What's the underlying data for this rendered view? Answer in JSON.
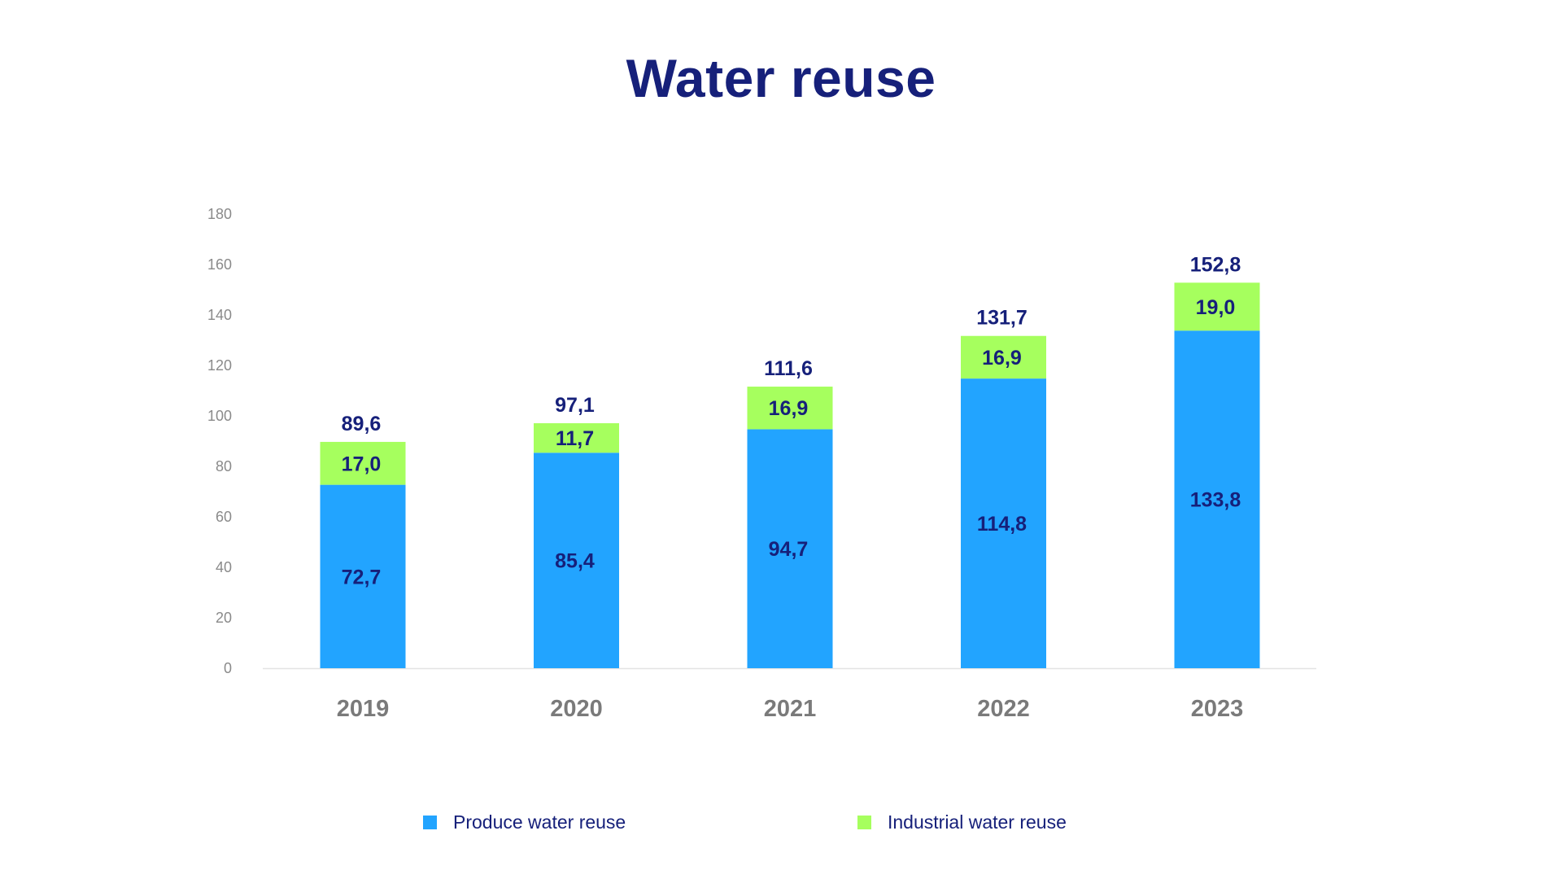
{
  "chart_data": {
    "type": "bar",
    "stacked": true,
    "title": "Water reuse",
    "categories": [
      "2019",
      "2020",
      "2021",
      "2022",
      "2023"
    ],
    "series": [
      {
        "name": "Produce water reuse",
        "color": "#22a4ff",
        "values": [
          72.7,
          85.4,
          94.7,
          114.8,
          133.8
        ],
        "labels": [
          "72,7",
          "85,4",
          "94,7",
          "114,8",
          "133,8"
        ]
      },
      {
        "name": "Industrial water reuse",
        "color": "#a6ff5e",
        "values": [
          17.0,
          11.7,
          16.9,
          16.9,
          19.0
        ],
        "labels": [
          "17,0",
          "11,7",
          "16,9",
          "16,9",
          "19,0"
        ]
      }
    ],
    "totals": [
      89.6,
      97.1,
      111.6,
      131.7,
      152.8
    ],
    "total_labels": [
      "89,6",
      "97,1",
      "111,6",
      "131,7",
      "152,8"
    ],
    "yticks": [
      "0",
      "20",
      "40",
      "60",
      "80",
      "100",
      "120",
      "140",
      "160",
      "180"
    ],
    "ylim": [
      0,
      180
    ],
    "grid": false,
    "legend_position": "bottom",
    "colors": {
      "title": "#16207a",
      "data_label": "#16207a",
      "x_tick": "#7a7a7a",
      "y_tick": "#8a8a8a",
      "baseline": "#e3e3e3"
    }
  }
}
